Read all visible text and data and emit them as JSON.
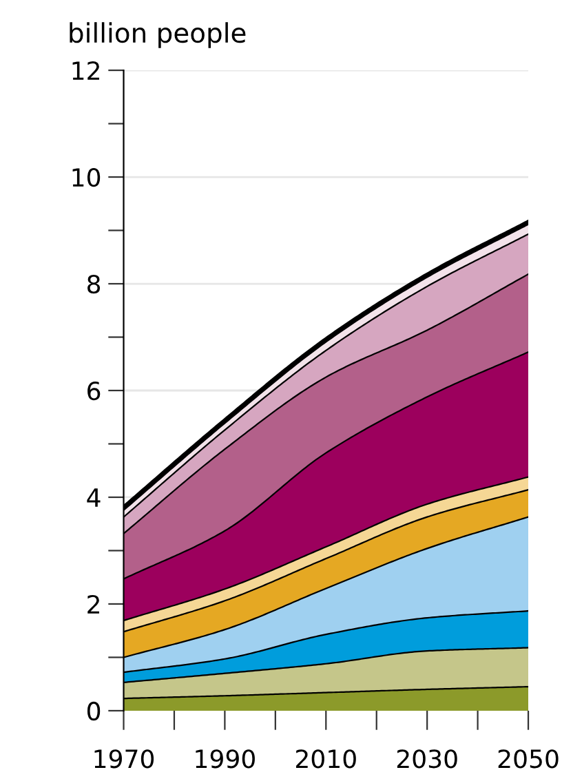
{
  "chart_data": {
    "type": "area",
    "stacked": true,
    "ylabel": "billion people",
    "x": [
      1970,
      1990,
      2010,
      2030,
      2050
    ],
    "series": [
      {
        "color": "#8c9a2a",
        "values": [
          0.23,
          0.28,
          0.34,
          0.4,
          0.45
        ]
      },
      {
        "color": "#c5c68a",
        "values": [
          0.3,
          0.42,
          0.54,
          0.72,
          0.73
        ]
      },
      {
        "color": "#009ddc",
        "values": [
          0.19,
          0.27,
          0.55,
          0.62,
          0.69
        ]
      },
      {
        "color": "#9fd0f0",
        "values": [
          0.28,
          0.55,
          0.86,
          1.3,
          1.76
        ]
      },
      {
        "color": "#e5a823",
        "values": [
          0.48,
          0.54,
          0.56,
          0.59,
          0.51
        ]
      },
      {
        "color": "#f5d795",
        "values": [
          0.21,
          0.22,
          0.22,
          0.24,
          0.24
        ]
      },
      {
        "color": "#9c005d",
        "values": [
          0.78,
          1.09,
          1.76,
          2.01,
          2.34
        ]
      },
      {
        "color": "#b3608a",
        "values": [
          0.85,
          1.53,
          1.42,
          1.25,
          1.46
        ]
      },
      {
        "color": "#d6a6c0",
        "values": [
          0.31,
          0.36,
          0.5,
          0.82,
          0.75
        ]
      },
      {
        "color": "#f3e3ea",
        "values": [
          0.17,
          0.17,
          0.2,
          0.21,
          0.22
        ]
      }
    ],
    "xlim": [
      1970,
      2050
    ],
    "xticks": [
      1970,
      {
        "value": 1980,
        "label": null
      },
      1990,
      {
        "value": 2000,
        "label": null
      },
      2010,
      {
        "value": 2020,
        "label": null
      },
      2030,
      {
        "value": 2040,
        "label": null
      },
      2050
    ],
    "ylim": [
      0,
      12
    ],
    "yticks": [
      0,
      {
        "value": 1,
        "label": null
      },
      2,
      {
        "value": 3,
        "label": null
      },
      4,
      {
        "value": 5,
        "label": null
      },
      6,
      {
        "value": 7,
        "label": null
      },
      8,
      {
        "value": 9,
        "label": null
      },
      10,
      {
        "value": 11,
        "label": null
      },
      12
    ],
    "grid": "y"
  }
}
